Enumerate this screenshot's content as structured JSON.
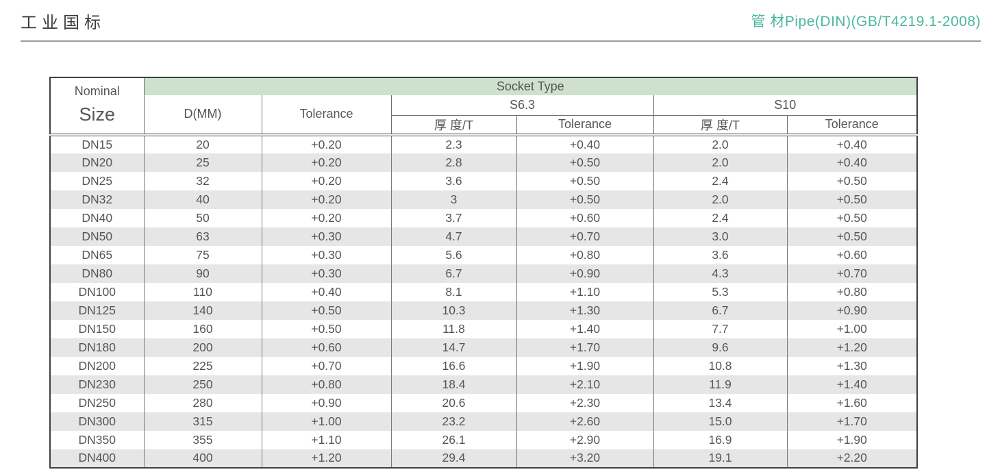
{
  "page": {
    "title_left": "工业国标",
    "title_right": "管 材Pipe(DIN)(GB/T4219.1-2008)",
    "accent_color": "#4bb79c"
  },
  "table": {
    "corner": {
      "line1": "Nominal",
      "line2": "Size"
    },
    "socket_type_label": "Socket Type",
    "socket_type_bg": "#cde1cd",
    "col_d_label": "D(MM)",
    "col_tolerance_label": "Tolerance",
    "group_s63_label": "S6.3",
    "group_s10_label": "S10",
    "sub_headers": [
      "厚 度/T",
      "Tolerance",
      "厚 度/T",
      "Tolerance"
    ],
    "stripe_color": "#e6e6e6",
    "rows": [
      [
        "DN15",
        "20",
        "+0.20",
        "2.3",
        "+0.40",
        "2.0",
        "+0.40"
      ],
      [
        "DN20",
        "25",
        "+0.20",
        "2.8",
        "+0.50",
        "2.0",
        "+0.40"
      ],
      [
        "DN25",
        "32",
        "+0.20",
        "3.6",
        "+0.50",
        "2.4",
        "+0.50"
      ],
      [
        "DN32",
        "40",
        "+0.20",
        "3",
        "+0.50",
        "2.0",
        "+0.50"
      ],
      [
        "DN40",
        "50",
        "+0.20",
        "3.7",
        "+0.60",
        "2.4",
        "+0.50"
      ],
      [
        "DN50",
        "63",
        "+0.30",
        "4.7",
        "+0.70",
        "3.0",
        "+0.50"
      ],
      [
        "DN65",
        "75",
        "+0.30",
        "5.6",
        "+0.80",
        "3.6",
        "+0.60"
      ],
      [
        "DN80",
        "90",
        "+0.30",
        "6.7",
        "+0.90",
        "4.3",
        "+0.70"
      ],
      [
        "DN100",
        "110",
        "+0.40",
        "8.1",
        "+1.10",
        "5.3",
        "+0.80"
      ],
      [
        "DN125",
        "140",
        "+0.50",
        "10.3",
        "+1.30",
        "6.7",
        "+0.90"
      ],
      [
        "DN150",
        "160",
        "+0.50",
        "11.8",
        "+1.40",
        "7.7",
        "+1.00"
      ],
      [
        "DN180",
        "200",
        "+0.60",
        "14.7",
        "+1.70",
        "9.6",
        "+1.20"
      ],
      [
        "DN200",
        "225",
        "+0.70",
        "16.6",
        "+1.90",
        "10.8",
        "+1.30"
      ],
      [
        "DN230",
        "250",
        "+0.80",
        "18.4",
        "+2.10",
        "11.9",
        "+1.40"
      ],
      [
        "DN250",
        "280",
        "+0.90",
        "20.6",
        "+2.30",
        "13.4",
        "+1.60"
      ],
      [
        "DN300",
        "315",
        "+1.00",
        "23.2",
        "+2.60",
        "15.0",
        "+1.70"
      ],
      [
        "DN350",
        "355",
        "+1.10",
        "26.1",
        "+2.90",
        "16.9",
        "+1.90"
      ],
      [
        "DN400",
        "400",
        "+1.20",
        "29.4",
        "+3.20",
        "19.1",
        "+2.20"
      ]
    ]
  }
}
